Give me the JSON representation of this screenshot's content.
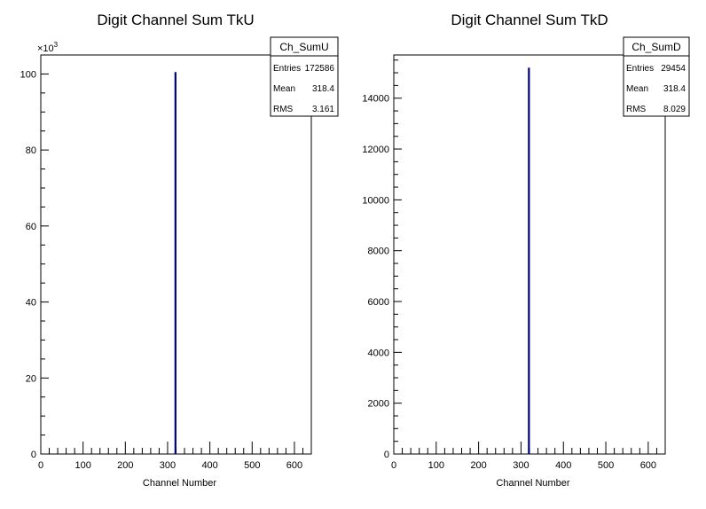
{
  "chart_data": [
    {
      "type": "bar",
      "title": "Digit Channel Sum TkU",
      "xlabel": "Channel Number",
      "ylabel": "",
      "xlim": [
        0,
        640
      ],
      "ylim": [
        0,
        105000
      ],
      "x_ticks": [
        0,
        100,
        200,
        300,
        400,
        500,
        600
      ],
      "y_ticks": [
        0,
        20000,
        40000,
        60000,
        80000,
        100000
      ],
      "y_tick_labels": [
        "0",
        "20",
        "40",
        "60",
        "80",
        "100"
      ],
      "y_multiplier": "×10",
      "y_multiplier_exp": "3",
      "series": [
        {
          "x": [
            318.4
          ],
          "values": [
            100500
          ]
        }
      ],
      "line_color": "#000080",
      "stats": {
        "name": "Ch_SumU",
        "entries_label": "Entries",
        "entries": "172586",
        "mean_label": "Mean",
        "mean": "318.4",
        "rms_label": "RMS",
        "rms": "3.161"
      }
    },
    {
      "type": "bar",
      "title": "Digit Channel Sum TkD",
      "xlabel": "Channel Number",
      "ylabel": "",
      "xlim": [
        0,
        640
      ],
      "ylim": [
        0,
        15700
      ],
      "x_ticks": [
        0,
        100,
        200,
        300,
        400,
        500,
        600
      ],
      "y_ticks": [
        0,
        2000,
        4000,
        6000,
        8000,
        10000,
        12000,
        14000
      ],
      "y_tick_labels": [
        "0",
        "2000",
        "4000",
        "6000",
        "8000",
        "10000",
        "12000",
        "14000"
      ],
      "y_multiplier": "",
      "y_multiplier_exp": "",
      "series": [
        {
          "x": [
            318.4
          ],
          "values": [
            15200
          ]
        }
      ],
      "line_color": "#000080",
      "stats": {
        "name": "Ch_SumD",
        "entries_label": "Entries",
        "entries": "29454",
        "mean_label": "Mean",
        "mean": "318.4",
        "rms_label": "RMS",
        "rms": "8.029"
      }
    }
  ]
}
